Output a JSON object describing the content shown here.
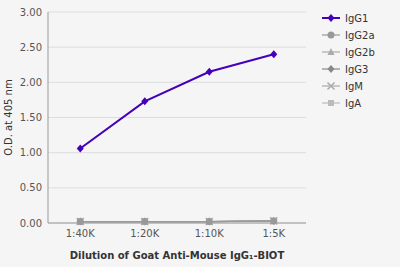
{
  "chart_data": {
    "type": "line",
    "xlabel": "Dilution of Goat Anti-Mouse IgG₁-BIOT",
    "ylabel": "O.D. at 405 nm",
    "categories": [
      "1:40K",
      "1:20K",
      "1:10K",
      "1:5K"
    ],
    "series": [
      {
        "name": "IgG1",
        "color": "#4400bb",
        "marker": "diamond",
        "values": [
          1.06,
          1.73,
          2.15,
          2.4
        ]
      },
      {
        "name": "IgG2a",
        "color": "#999999",
        "marker": "circle",
        "values": [
          0.02,
          0.02,
          0.02,
          0.03
        ]
      },
      {
        "name": "IgG2b",
        "color": "#aaaaaa",
        "marker": "triangle",
        "values": [
          0.02,
          0.02,
          0.02,
          0.03
        ]
      },
      {
        "name": "IgG3",
        "color": "#888888",
        "marker": "diamond",
        "values": [
          0.02,
          0.02,
          0.02,
          0.03
        ]
      },
      {
        "name": "IgM",
        "color": "#aaaaaa",
        "marker": "x",
        "values": [
          0.02,
          0.02,
          0.02,
          0.03
        ]
      },
      {
        "name": "IgA",
        "color": "#bbbbbb",
        "marker": "square",
        "values": [
          0.02,
          0.02,
          0.02,
          0.03
        ]
      }
    ],
    "ylim": [
      0.0,
      3.0
    ],
    "yticks": [
      {
        "value": 0.0,
        "label": "0.00"
      },
      {
        "value": 0.5,
        "label": "0.50"
      },
      {
        "value": 1.0,
        "label": "1.00"
      },
      {
        "value": 1.5,
        "label": "1.50"
      },
      {
        "value": 2.0,
        "label": "2.00"
      },
      {
        "value": 2.5,
        "label": "2.50"
      },
      {
        "value": 3.0,
        "label": "3.00"
      }
    ],
    "grid": true,
    "legend": "right"
  }
}
